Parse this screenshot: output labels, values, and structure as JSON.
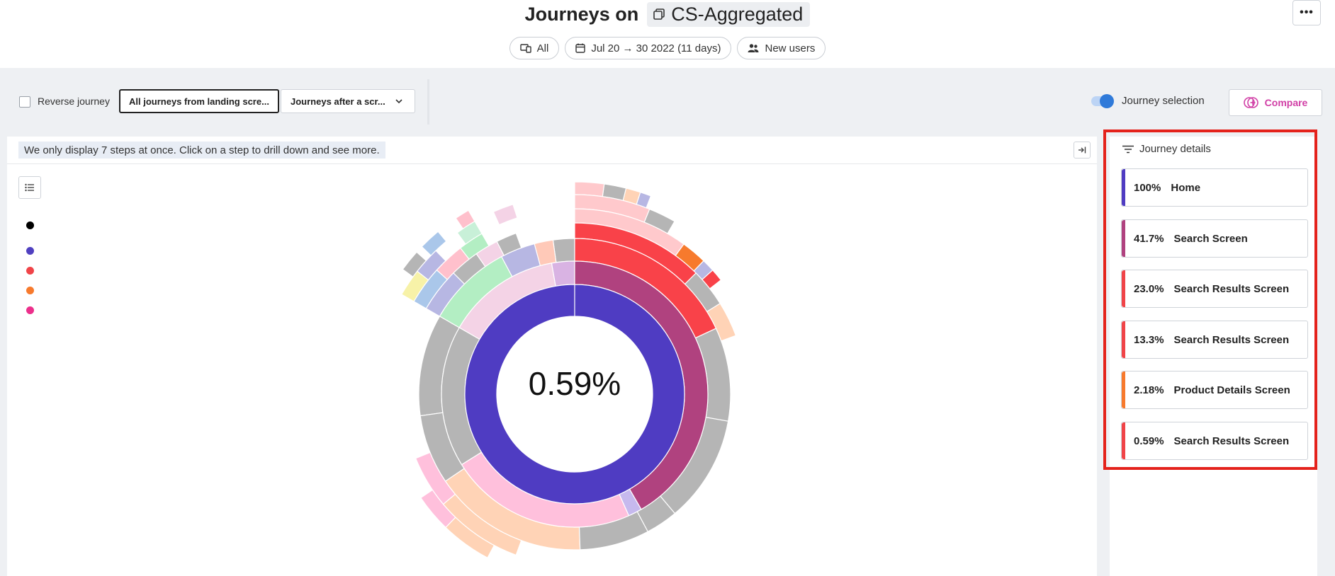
{
  "header": {
    "title_prefix": "Journeys on",
    "workspace": "CS-Aggregated",
    "more_label": "•••",
    "filters": [
      {
        "icon": "devices-icon",
        "label": "All"
      },
      {
        "icon": "calendar-icon",
        "label": "Jul 20 → 30 2022 (11 days)"
      },
      {
        "icon": "users-icon",
        "label": "New users"
      }
    ]
  },
  "toolbar": {
    "reverse_label": "Reverse journey",
    "landing_label": "All journeys from landing scre...",
    "after_label": "Journeys after a scr...",
    "selection_label": "Journey selection",
    "compare_label": "Compare"
  },
  "main": {
    "hint": "We only display 7 steps at once. Click on a step to drill down and see more.",
    "center_value": "0.59%",
    "legend_colors": [
      "#000000",
      "#5040c0",
      "#f04448",
      "#f77a2d",
      "#ec2f8b"
    ]
  },
  "details": {
    "title": "Journey details",
    "items": [
      {
        "pct": "100%",
        "name": "Home",
        "color": "#4f3cc2"
      },
      {
        "pct": "41.7%",
        "name": "Search Screen",
        "color": "#b0427f"
      },
      {
        "pct": "23.0%",
        "name": "Search Results Screen",
        "color": "#f04448"
      },
      {
        "pct": "13.3%",
        "name": "Search Results Screen",
        "color": "#f04448"
      },
      {
        "pct": "2.18%",
        "name": "Product Details Screen",
        "color": "#f77a2d"
      },
      {
        "pct": "0.59%",
        "name": "Search Results Screen",
        "color": "#f04448"
      }
    ]
  }
}
